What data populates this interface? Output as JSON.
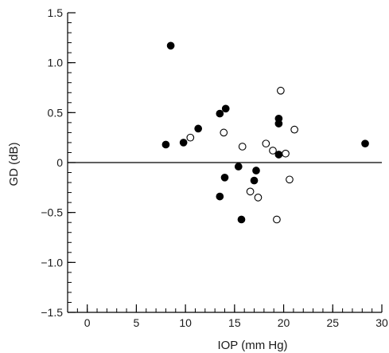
{
  "chart_data": {
    "type": "scatter",
    "xlabel": "IOP (mm Hg)",
    "ylabel": "GD (dB)",
    "xlim": [
      -2,
      30
    ],
    "ylim": [
      -1.5,
      1.5
    ],
    "xticks": [
      0,
      5,
      10,
      15,
      20,
      25,
      30
    ],
    "xtick_labels": [
      "0",
      "5",
      "10",
      "15",
      "20",
      "25",
      "30"
    ],
    "yticks": [
      -1.5,
      -1.0,
      -0.5,
      0,
      0.5,
      1.0,
      1.5
    ],
    "ytick_labels": [
      "−1.5",
      "−1.0",
      "−0.5",
      "0",
      "0.5",
      "1.0",
      "1.5"
    ],
    "x_minor_step": 1,
    "y_minor_step": 0.1,
    "reference_line_y": 0,
    "grid": false,
    "series": [
      {
        "marker": "filled-circle",
        "color": "#000000",
        "points": [
          {
            "x": 8.5,
            "y": 1.17
          },
          {
            "x": 8.0,
            "y": 0.18
          },
          {
            "x": 9.8,
            "y": 0.2
          },
          {
            "x": 11.3,
            "y": 0.34
          },
          {
            "x": 13.5,
            "y": 0.49
          },
          {
            "x": 14.1,
            "y": 0.54
          },
          {
            "x": 14.0,
            "y": -0.15
          },
          {
            "x": 13.5,
            "y": -0.34
          },
          {
            "x": 15.4,
            "y": -0.04
          },
          {
            "x": 15.7,
            "y": -0.57
          },
          {
            "x": 17.2,
            "y": -0.08
          },
          {
            "x": 17.0,
            "y": -0.18
          },
          {
            "x": 19.5,
            "y": 0.44
          },
          {
            "x": 19.5,
            "y": 0.39
          },
          {
            "x": 19.5,
            "y": 0.08
          },
          {
            "x": 28.3,
            "y": 0.19
          }
        ]
      },
      {
        "marker": "open-circle",
        "color": "#000000",
        "points": [
          {
            "x": 10.5,
            "y": 0.25
          },
          {
            "x": 13.9,
            "y": 0.3
          },
          {
            "x": 15.8,
            "y": 0.16
          },
          {
            "x": 16.6,
            "y": -0.29
          },
          {
            "x": 17.4,
            "y": -0.35
          },
          {
            "x": 18.2,
            "y": 0.19
          },
          {
            "x": 18.9,
            "y": 0.12
          },
          {
            "x": 19.3,
            "y": -0.57
          },
          {
            "x": 19.7,
            "y": 0.72
          },
          {
            "x": 20.2,
            "y": 0.09
          },
          {
            "x": 20.6,
            "y": -0.17
          },
          {
            "x": 21.1,
            "y": 0.33
          }
        ]
      }
    ]
  }
}
